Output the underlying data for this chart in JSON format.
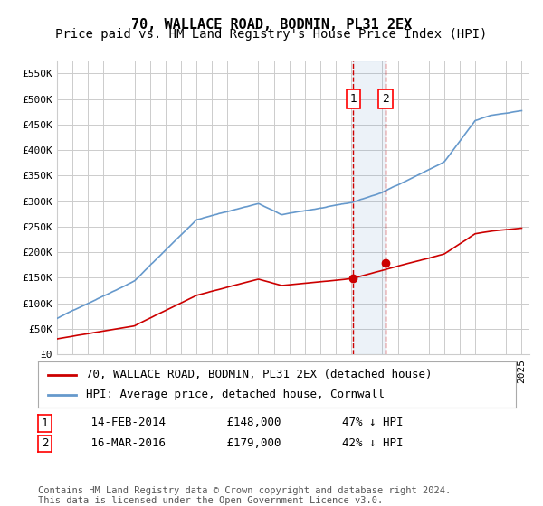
{
  "title": "70, WALLACE ROAD, BODMIN, PL31 2EX",
  "subtitle": "Price paid vs. HM Land Registry's House Price Index (HPI)",
  "ylabel": "",
  "ylim": [
    0,
    575000
  ],
  "yticks": [
    0,
    50000,
    100000,
    150000,
    200000,
    250000,
    300000,
    350000,
    400000,
    450000,
    500000,
    550000
  ],
  "yticklabels": [
    "£0",
    "£50K",
    "£100K",
    "£150K",
    "£200K",
    "£250K",
    "£300K",
    "£350K",
    "£400K",
    "£450K",
    "£500K",
    "£550K"
  ],
  "xlim_start": 1995.0,
  "xlim_end": 2025.5,
  "background_color": "#ffffff",
  "grid_color": "#cccccc",
  "hpi_color": "#6699cc",
  "price_color": "#cc0000",
  "sale1_date": 2014.12,
  "sale1_price": 148000,
  "sale2_date": 2016.21,
  "sale2_price": 179000,
  "legend_label1": "70, WALLACE ROAD, BODMIN, PL31 2EX (detached house)",
  "legend_label2": "HPI: Average price, detached house, Cornwall",
  "annotation1_label": "1",
  "annotation2_label": "2",
  "note1": "1    14-FEB-2014         £148,000         47% ↓ HPI",
  "note2": "2    16-MAR-2016         £179,000         42% ↓ HPI",
  "footer": "Contains HM Land Registry data © Crown copyright and database right 2024.\nThis data is licensed under the Open Government Licence v3.0.",
  "title_fontsize": 11,
  "subtitle_fontsize": 10,
  "tick_fontsize": 8,
  "legend_fontsize": 9,
  "note_fontsize": 9,
  "footer_fontsize": 7.5
}
